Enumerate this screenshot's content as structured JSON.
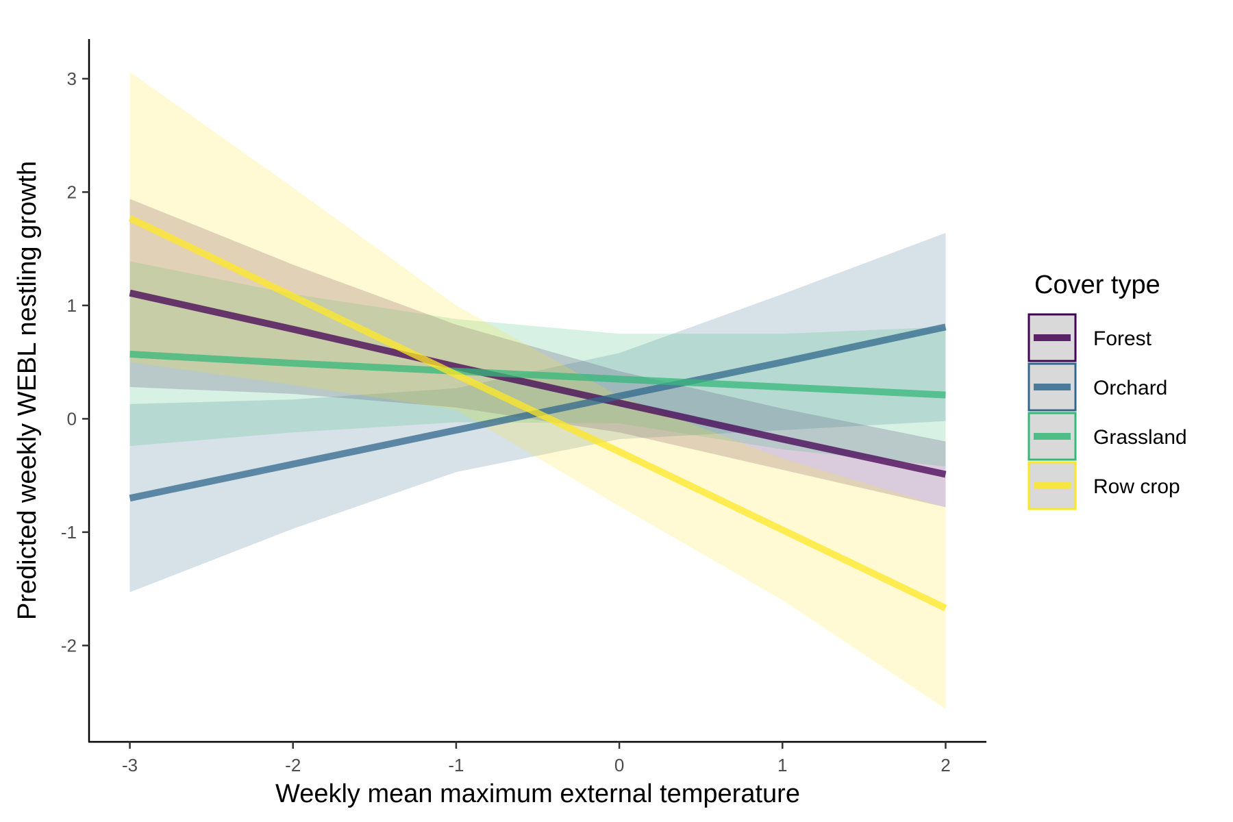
{
  "chart_data": {
    "type": "line",
    "xlabel": "Weekly mean maximum external temperature",
    "ylabel": "Predicted weekly WEBL nestling growth",
    "xlim": [
      -3.25,
      2.25
    ],
    "ylim": [
      -2.85,
      3.35
    ],
    "xticks": [
      -3,
      -2,
      -1,
      0,
      1,
      2
    ],
    "yticks": [
      -2,
      -1,
      0,
      1,
      2,
      3
    ],
    "grid": false,
    "legend": {
      "title": "Cover type",
      "position": "right"
    },
    "x": [
      -3,
      -2,
      -1,
      0,
      1,
      2
    ],
    "series": [
      {
        "name": "Forest",
        "color": "#440154",
        "line": [
          1.11,
          0.79,
          0.46,
          0.14,
          -0.18,
          -0.49
        ],
        "lower": [
          0.28,
          0.22,
          0.1,
          -0.12,
          -0.45,
          -0.78
        ],
        "upper": [
          1.94,
          1.36,
          0.83,
          0.42,
          0.09,
          -0.2
        ]
      },
      {
        "name": "Orchard",
        "color": "#31688E",
        "line": [
          -0.7,
          -0.4,
          -0.1,
          0.2,
          0.5,
          0.81
        ],
        "lower": [
          -1.53,
          -0.97,
          -0.47,
          -0.18,
          -0.1,
          -0.02
        ],
        "upper": [
          0.13,
          0.17,
          0.27,
          0.58,
          1.1,
          1.64
        ]
      },
      {
        "name": "Grassland",
        "color": "#35B779",
        "line": [
          0.57,
          0.49,
          0.42,
          0.35,
          0.28,
          0.21
        ],
        "lower": [
          -0.24,
          -0.12,
          -0.03,
          -0.04,
          -0.27,
          -0.42
        ],
        "upper": [
          1.39,
          1.1,
          0.88,
          0.75,
          0.75,
          0.81
        ]
      },
      {
        "name": "Row crop",
        "color": "#FDE725",
        "line": [
          1.77,
          1.08,
          0.39,
          -0.29,
          -0.98,
          -1.67
        ],
        "lower": [
          0.5,
          0.3,
          0.08,
          -0.77,
          -1.6,
          -2.56
        ],
        "upper": [
          3.06,
          2.04,
          1.0,
          0.2,
          -0.35,
          -0.78
        ]
      }
    ]
  }
}
